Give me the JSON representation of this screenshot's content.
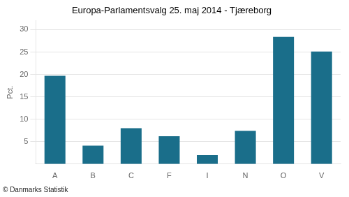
{
  "chart_data": {
    "type": "bar",
    "title": "Europa-Parlamentsvalg 25. maj 2014 - Tjæreborg",
    "ylabel": "Pct.",
    "footer": "© Danmarks Statistik",
    "categories": [
      "A",
      "B",
      "C",
      "F",
      "I",
      "N",
      "O",
      "V"
    ],
    "values": [
      19.7,
      4.1,
      8.0,
      6.2,
      2.0,
      7.4,
      28.4,
      25.1
    ],
    "color": "#1a6e8a",
    "ylim": [
      0,
      32
    ],
    "yticks": [
      5,
      10,
      15,
      20,
      25,
      30
    ],
    "grid": true
  }
}
